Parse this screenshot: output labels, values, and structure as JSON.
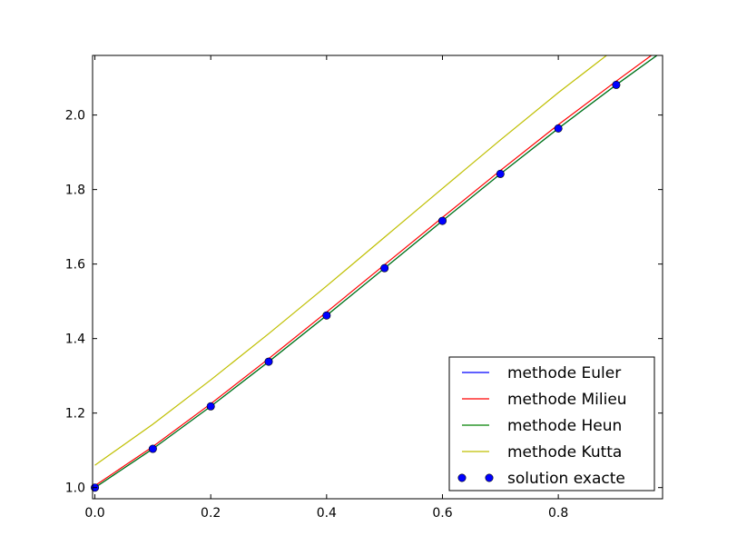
{
  "chart_data": {
    "type": "line",
    "title": "",
    "xlabel": "",
    "ylabel": "",
    "xlim": [
      -0.004,
      0.98
    ],
    "ylim": [
      0.97,
      2.16
    ],
    "xticks": [
      0.0,
      0.2,
      0.4,
      0.6,
      0.8
    ],
    "xtick_labels": [
      "0.0",
      "0.2",
      "0.4",
      "0.6",
      "0.8"
    ],
    "yticks": [
      1.0,
      1.2,
      1.4,
      1.6,
      1.8,
      2.0
    ],
    "ytick_labels": [
      "1.0",
      "1.2",
      "1.4",
      "1.6",
      "1.8",
      "2.0"
    ],
    "grid": false,
    "legend_position": "lower-right",
    "x": [
      0.0,
      0.1,
      0.2,
      0.3,
      0.4,
      0.5,
      0.6,
      0.7,
      0.8,
      0.9,
      0.98
    ],
    "series": [
      {
        "name": "methode Euler",
        "style": "line",
        "color": "#0000ff",
        "values": [
          1.0,
          1.104,
          1.218,
          1.338,
          1.462,
          1.589,
          1.716,
          1.842,
          1.964,
          2.081,
          2.171
        ]
      },
      {
        "name": "methode Milieu",
        "style": "line",
        "color": "#ff0000",
        "values": [
          1.005,
          1.11,
          1.225,
          1.346,
          1.471,
          1.598,
          1.725,
          1.851,
          1.974,
          2.091,
          2.182
        ]
      },
      {
        "name": "methode Heun",
        "style": "line",
        "color": "#008000",
        "values": [
          1.0,
          1.104,
          1.218,
          1.338,
          1.462,
          1.589,
          1.716,
          1.842,
          1.964,
          2.081,
          2.171
        ]
      },
      {
        "name": "methode Kutta",
        "style": "line",
        "color": "#bfbf00",
        "values": [
          1.06,
          1.17,
          1.289,
          1.413,
          1.541,
          1.672,
          1.803,
          1.933,
          2.06,
          2.18,
          2.272
        ]
      },
      {
        "name": "solution exacte",
        "style": "markers",
        "color": "#0000ff",
        "x": [
          0.0,
          0.1,
          0.2,
          0.3,
          0.4,
          0.5,
          0.6,
          0.7,
          0.8,
          0.9
        ],
        "values": [
          1.0,
          1.104,
          1.218,
          1.338,
          1.462,
          1.589,
          1.716,
          1.842,
          1.964,
          2.081
        ]
      }
    ]
  }
}
